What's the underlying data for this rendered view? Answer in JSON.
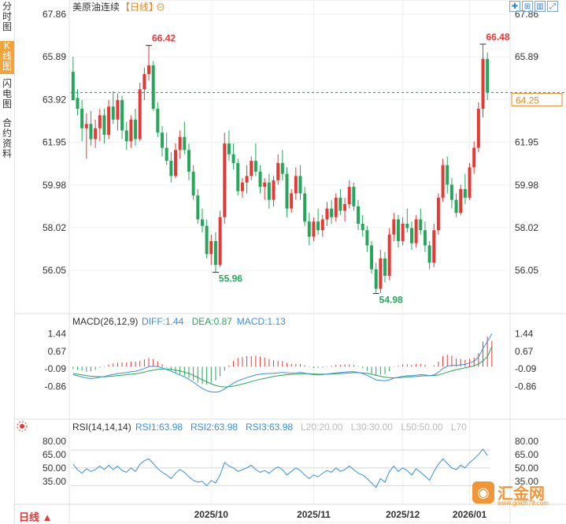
{
  "sidebar": {
    "tabs": [
      {
        "label": "分时图",
        "active": false
      },
      {
        "label": "K线图",
        "active": true
      },
      {
        "label": "闪电图",
        "active": false
      },
      {
        "label": "合约资料",
        "active": false
      }
    ]
  },
  "header": {
    "title": "美原油连续",
    "period_tag": "【日线】",
    "collapse_icon": "minus-circle-icon"
  },
  "toolbar": {
    "icons": [
      "crosshair-icon",
      "indicator-icon",
      "bar-chart-icon",
      "expand-icon"
    ]
  },
  "period_button": "日线 ▲",
  "watermark": {
    "name": "汇金网",
    "url": "www.gold678.com"
  },
  "chart_data": [
    {
      "type": "candlestick",
      "panel": "price",
      "title": "美原油连续【日线】",
      "ylim": [
        55.0,
        67.86
      ],
      "y_ticks": [
        67.86,
        65.89,
        63.92,
        61.95,
        59.98,
        58.02,
        56.05
      ],
      "x_ticks": [
        "2025/10",
        "2025/11",
        "2025/12",
        "2026/01"
      ],
      "last_price": 64.25,
      "annotations": [
        {
          "label": "66.42",
          "type": "high"
        },
        {
          "label": "55.96",
          "type": "low"
        },
        {
          "label": "54.98",
          "type": "low"
        },
        {
          "label": "66.48",
          "type": "high"
        }
      ],
      "colors": {
        "up": "#e53935",
        "down": "#26a65b"
      },
      "candles": [
        [
          65.2,
          65.9,
          64.0,
          63.9
        ],
        [
          64.0,
          64.4,
          63.2,
          63.5
        ],
        [
          63.5,
          63.9,
          62.0,
          62.6
        ],
        [
          62.6,
          63.3,
          61.2,
          62.8
        ],
        [
          62.8,
          63.4,
          61.8,
          62.1
        ],
        [
          62.1,
          63.0,
          61.7,
          62.6
        ],
        [
          62.6,
          63.5,
          62.0,
          63.2
        ],
        [
          63.2,
          63.5,
          61.9,
          62.3
        ],
        [
          62.3,
          63.9,
          62.1,
          63.6
        ],
        [
          63.6,
          64.3,
          62.8,
          63.0
        ],
        [
          63.0,
          64.2,
          62.5,
          63.9
        ],
        [
          63.9,
          64.1,
          62.1,
          62.5
        ],
        [
          62.5,
          62.9,
          61.6,
          62.0
        ],
        [
          62.0,
          63.2,
          61.7,
          63.0
        ],
        [
          63.0,
          63.5,
          61.8,
          62.1
        ],
        [
          62.1,
          64.7,
          62.0,
          64.4
        ],
        [
          64.4,
          65.4,
          63.9,
          65.1
        ],
        [
          65.1,
          66.42,
          64.8,
          65.5
        ],
        [
          65.5,
          65.7,
          63.4,
          63.5
        ],
        [
          63.5,
          63.8,
          62.2,
          62.4
        ],
        [
          62.4,
          62.7,
          61.3,
          61.7
        ],
        [
          61.7,
          62.4,
          60.9,
          61.1
        ],
        [
          61.1,
          61.5,
          60.1,
          60.4
        ],
        [
          60.4,
          61.9,
          60.3,
          61.6
        ],
        [
          61.6,
          62.5,
          61.2,
          62.2
        ],
        [
          62.2,
          62.9,
          61.4,
          61.6
        ],
        [
          61.6,
          61.9,
          60.2,
          60.6
        ],
        [
          60.6,
          60.9,
          59.3,
          59.5
        ],
        [
          59.5,
          59.8,
          58.2,
          58.4
        ],
        [
          58.4,
          58.9,
          57.8,
          58.1
        ],
        [
          58.1,
          58.4,
          56.6,
          56.8
        ],
        [
          56.8,
          57.7,
          56.3,
          57.4
        ],
        [
          57.4,
          57.8,
          55.96,
          56.3
        ],
        [
          56.3,
          58.8,
          56.2,
          58.5
        ],
        [
          58.5,
          62.4,
          58.2,
          61.9
        ],
        [
          61.9,
          62.5,
          61.1,
          61.4
        ],
        [
          61.4,
          61.9,
          60.7,
          61.0
        ],
        [
          61.0,
          61.2,
          59.5,
          59.7
        ],
        [
          59.7,
          60.3,
          59.4,
          60.1
        ],
        [
          60.1,
          60.9,
          59.6,
          60.4
        ],
        [
          60.4,
          61.3,
          60.2,
          61.1
        ],
        [
          61.1,
          61.9,
          60.4,
          60.6
        ],
        [
          60.6,
          60.9,
          59.6,
          59.9
        ],
        [
          59.9,
          60.3,
          59.3,
          60.1
        ],
        [
          60.1,
          60.5,
          58.9,
          59.3
        ],
        [
          59.3,
          60.4,
          59.0,
          60.2
        ],
        [
          60.2,
          61.4,
          60.0,
          61.0
        ],
        [
          61.0,
          61.6,
          60.2,
          60.5
        ],
        [
          60.5,
          60.8,
          58.5,
          58.9
        ],
        [
          58.9,
          59.8,
          58.7,
          59.6
        ],
        [
          59.6,
          60.8,
          59.3,
          60.4
        ],
        [
          60.4,
          60.9,
          59.3,
          59.6
        ],
        [
          59.6,
          59.9,
          58.1,
          58.3
        ],
        [
          58.3,
          58.7,
          57.2,
          57.6
        ],
        [
          57.6,
          58.5,
          57.4,
          58.3
        ],
        [
          58.3,
          58.9,
          57.7,
          57.9
        ],
        [
          57.9,
          58.6,
          57.6,
          58.4
        ],
        [
          58.4,
          59.2,
          58.1,
          58.9
        ],
        [
          58.9,
          59.3,
          58.2,
          58.5
        ],
        [
          58.5,
          59.6,
          58.3,
          59.4
        ],
        [
          59.4,
          59.8,
          58.6,
          58.8
        ],
        [
          58.8,
          59.4,
          58.3,
          59.1
        ],
        [
          59.1,
          60.2,
          58.9,
          59.9
        ],
        [
          59.9,
          60.1,
          58.8,
          59.0
        ],
        [
          59.0,
          59.3,
          57.9,
          58.2
        ],
        [
          58.2,
          58.6,
          57.6,
          57.9
        ],
        [
          57.9,
          58.1,
          56.9,
          57.2
        ],
        [
          57.2,
          57.4,
          55.9,
          56.1
        ],
        [
          56.1,
          56.4,
          54.98,
          55.2
        ],
        [
          55.2,
          57.0,
          55.0,
          56.6
        ],
        [
          56.6,
          56.9,
          55.5,
          55.8
        ],
        [
          55.8,
          58.0,
          55.6,
          57.7
        ],
        [
          57.7,
          58.7,
          57.4,
          58.4
        ],
        [
          58.4,
          58.6,
          57.1,
          57.4
        ],
        [
          57.4,
          58.5,
          57.2,
          58.2
        ],
        [
          58.2,
          58.9,
          57.8,
          58.0
        ],
        [
          58.0,
          58.3,
          57.0,
          57.3
        ],
        [
          57.3,
          58.6,
          57.1,
          58.4
        ],
        [
          58.4,
          58.9,
          57.7,
          57.9
        ],
        [
          57.9,
          58.3,
          56.9,
          57.2
        ],
        [
          57.2,
          57.4,
          56.1,
          56.4
        ],
        [
          56.4,
          58.2,
          56.2,
          57.9
        ],
        [
          57.9,
          59.6,
          57.7,
          59.4
        ],
        [
          59.4,
          61.2,
          59.2,
          60.9
        ],
        [
          60.9,
          61.3,
          59.6,
          60.0
        ],
        [
          60.0,
          60.3,
          58.9,
          59.3
        ],
        [
          59.3,
          59.6,
          58.5,
          58.7
        ],
        [
          58.7,
          60.0,
          58.6,
          59.8
        ],
        [
          59.8,
          60.5,
          59.1,
          59.4
        ],
        [
          59.4,
          61.0,
          59.3,
          60.8
        ],
        [
          60.8,
          62.0,
          60.5,
          61.7
        ],
        [
          61.7,
          63.8,
          61.5,
          63.5
        ],
        [
          63.5,
          66.48,
          63.1,
          65.8
        ],
        [
          65.8,
          66.1,
          63.9,
          64.25
        ]
      ]
    },
    {
      "type": "bar+line",
      "panel": "macd",
      "title": "MACD(26,12,9)",
      "legend": [
        {
          "name": "DIFF",
          "value": "1.44",
          "color": "#3a8fe0"
        },
        {
          "name": "DEA",
          "value": "0.87",
          "color": "#26a65b"
        },
        {
          "name": "MACD",
          "value": "1.13",
          "color": "#3a8fe0"
        }
      ],
      "ylim": [
        -1.3,
        1.6
      ],
      "y_ticks": [
        1.44,
        0.67,
        -0.09,
        -0.86
      ],
      "diff": [
        -0.35,
        -0.4,
        -0.45,
        -0.5,
        -0.52,
        -0.5,
        -0.46,
        -0.43,
        -0.38,
        -0.34,
        -0.3,
        -0.28,
        -0.26,
        -0.22,
        -0.2,
        -0.15,
        -0.08,
        0.0,
        0.02,
        0.0,
        -0.05,
        -0.12,
        -0.2,
        -0.28,
        -0.36,
        -0.44,
        -0.55,
        -0.68,
        -0.82,
        -0.95,
        -1.05,
        -1.1,
        -1.12,
        -1.08,
        -0.98,
        -0.85,
        -0.72,
        -0.62,
        -0.55,
        -0.48,
        -0.42,
        -0.36,
        -0.33,
        -0.31,
        -0.3,
        -0.29,
        -0.27,
        -0.25,
        -0.27,
        -0.28,
        -0.27,
        -0.25,
        -0.28,
        -0.32,
        -0.35,
        -0.36,
        -0.35,
        -0.32,
        -0.3,
        -0.27,
        -0.26,
        -0.24,
        -0.22,
        -0.22,
        -0.25,
        -0.3,
        -0.38,
        -0.48,
        -0.58,
        -0.6,
        -0.62,
        -0.58,
        -0.5,
        -0.46,
        -0.42,
        -0.4,
        -0.4,
        -0.37,
        -0.35,
        -0.36,
        -0.4,
        -0.36,
        -0.25,
        -0.08,
        0.02,
        0.06,
        0.05,
        0.08,
        0.1,
        0.16,
        0.24,
        0.42,
        0.8,
        1.1,
        1.44
      ],
      "dea": [
        -0.3,
        -0.33,
        -0.36,
        -0.39,
        -0.42,
        -0.43,
        -0.44,
        -0.44,
        -0.43,
        -0.41,
        -0.39,
        -0.37,
        -0.35,
        -0.33,
        -0.31,
        -0.28,
        -0.24,
        -0.19,
        -0.15,
        -0.12,
        -0.1,
        -0.1,
        -0.12,
        -0.15,
        -0.19,
        -0.24,
        -0.3,
        -0.38,
        -0.47,
        -0.57,
        -0.66,
        -0.75,
        -0.82,
        -0.87,
        -0.89,
        -0.88,
        -0.85,
        -0.81,
        -0.76,
        -0.71,
        -0.65,
        -0.6,
        -0.55,
        -0.51,
        -0.47,
        -0.43,
        -0.4,
        -0.37,
        -0.35,
        -0.34,
        -0.33,
        -0.31,
        -0.31,
        -0.31,
        -0.32,
        -0.33,
        -0.33,
        -0.33,
        -0.32,
        -0.31,
        -0.3,
        -0.29,
        -0.27,
        -0.26,
        -0.26,
        -0.27,
        -0.29,
        -0.33,
        -0.38,
        -0.42,
        -0.46,
        -0.48,
        -0.49,
        -0.48,
        -0.47,
        -0.45,
        -0.44,
        -0.43,
        -0.41,
        -0.4,
        -0.4,
        -0.39,
        -0.36,
        -0.31,
        -0.24,
        -0.18,
        -0.13,
        -0.09,
        -0.05,
        -0.01,
        0.04,
        0.12,
        0.25,
        0.44,
        0.87
      ],
      "macd": [
        -0.1,
        -0.14,
        -0.18,
        -0.22,
        -0.2,
        -0.14,
        -0.04,
        0.02,
        0.1,
        0.14,
        0.18,
        0.18,
        0.18,
        0.22,
        0.22,
        0.26,
        0.32,
        0.38,
        0.34,
        0.24,
        0.1,
        -0.04,
        -0.16,
        -0.26,
        -0.34,
        -0.4,
        -0.5,
        -0.6,
        -0.7,
        -0.76,
        -0.78,
        -0.7,
        -0.6,
        -0.42,
        -0.18,
        0.06,
        0.26,
        0.38,
        0.42,
        0.46,
        0.46,
        0.48,
        0.44,
        0.4,
        0.34,
        0.28,
        0.26,
        0.24,
        0.16,
        0.12,
        0.12,
        0.12,
        0.06,
        -0.02,
        -0.06,
        -0.06,
        -0.04,
        0.02,
        0.04,
        0.08,
        0.08,
        0.1,
        0.1,
        0.08,
        0.02,
        -0.06,
        -0.18,
        -0.3,
        -0.4,
        -0.36,
        -0.32,
        -0.2,
        -0.02,
        0.04,
        0.1,
        0.1,
        0.08,
        0.12,
        0.12,
        0.08,
        0.0,
        0.06,
        0.22,
        0.46,
        0.52,
        0.48,
        0.36,
        0.34,
        0.3,
        0.34,
        0.4,
        0.6,
        1.1,
        1.32,
        1.13
      ]
    },
    {
      "type": "line",
      "panel": "rsi",
      "title": "RSI(14,14,14)",
      "legend": [
        {
          "name": "RSI1",
          "value": "63.98",
          "color": "#3a8fe0"
        },
        {
          "name": "RSI2",
          "value": "63.98",
          "color": "#3a8fe0"
        },
        {
          "name": "RSI3",
          "value": "63.98",
          "color": "#3a8fe0"
        },
        {
          "name": "L20",
          "value": "20.00",
          "color": "#bbbbbb"
        },
        {
          "name": "L30",
          "value": "30.00",
          "color": "#bbbbbb"
        },
        {
          "name": "L50",
          "value": "50.00",
          "color": "#bbbbbb"
        },
        {
          "name": "L70",
          "value": "",
          "color": "#bbbbbb"
        }
      ],
      "ylim": [
        18,
        86
      ],
      "y_ticks": [
        80.0,
        65.0,
        50.0,
        35.0
      ],
      "levels": [
        30,
        50,
        70
      ],
      "rsi": [
        54,
        48,
        44,
        49,
        46,
        48,
        52,
        48,
        53,
        48,
        52,
        47,
        45,
        50,
        46,
        54,
        58,
        60,
        55,
        49,
        45,
        42,
        38,
        44,
        48,
        45,
        40,
        36,
        34,
        35,
        30,
        36,
        33,
        42,
        56,
        52,
        50,
        46,
        48,
        50,
        53,
        48,
        45,
        47,
        44,
        48,
        51,
        48,
        42,
        46,
        50,
        47,
        42,
        38,
        42,
        40,
        44,
        47,
        45,
        50,
        46,
        48,
        52,
        48,
        44,
        42,
        38,
        33,
        28,
        38,
        34,
        46,
        52,
        46,
        50,
        47,
        42,
        49,
        45,
        41,
        36,
        46,
        54,
        60,
        55,
        50,
        48,
        53,
        50,
        56,
        60,
        65,
        71,
        63.98
      ]
    }
  ]
}
